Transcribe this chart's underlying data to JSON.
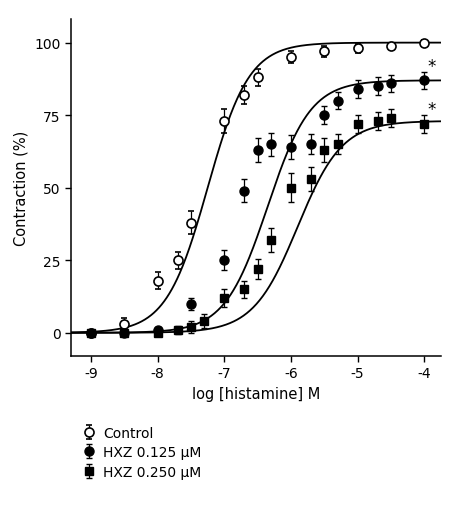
{
  "title": "",
  "xlabel": "log [histamine] M",
  "ylabel": "Contraction (%)",
  "xlim": [
    -9.3,
    -3.75
  ],
  "ylim": [
    -8,
    108
  ],
  "xticks": [
    -9,
    -8,
    -7,
    -6,
    -5,
    -4
  ],
  "xticklabels": [
    "-9",
    "-8",
    "-7",
    "-6",
    "-5",
    "-4"
  ],
  "yticks": [
    0,
    25,
    50,
    75,
    100
  ],
  "control_x": [
    -9.0,
    -8.5,
    -8.0,
    -7.7,
    -7.5,
    -7.0,
    -6.7,
    -6.5,
    -6.0,
    -5.5,
    -5.0,
    -4.5,
    -4.0
  ],
  "control_y": [
    0,
    3,
    18,
    25,
    38,
    73,
    82,
    88,
    95,
    97,
    98,
    99,
    100
  ],
  "control_yerr": [
    0.5,
    2,
    3,
    3,
    4,
    4,
    3,
    3,
    2,
    2,
    1.5,
    1,
    1
  ],
  "hxz125_x": [
    -9.0,
    -8.5,
    -8.0,
    -7.5,
    -7.0,
    -6.7,
    -6.5,
    -6.3,
    -6.0,
    -5.7,
    -5.5,
    -5.3,
    -5.0,
    -4.7,
    -4.5,
    -4.0
  ],
  "hxz125_y": [
    0,
    0,
    1,
    10,
    25,
    49,
    63,
    65,
    64,
    65,
    75,
    80,
    84,
    85,
    86,
    87
  ],
  "hxz125_yerr": [
    0.5,
    1,
    1,
    2,
    3.5,
    4,
    4,
    4,
    4,
    3.5,
    3,
    3,
    3,
    3,
    3,
    3
  ],
  "hxz250_x": [
    -9.0,
    -8.5,
    -8.0,
    -7.7,
    -7.5,
    -7.3,
    -7.0,
    -6.7,
    -6.5,
    -6.3,
    -6.0,
    -5.7,
    -5.5,
    -5.3,
    -5.0,
    -4.7,
    -4.5,
    -4.0
  ],
  "hxz250_y": [
    0,
    0,
    0,
    1,
    2,
    4,
    12,
    15,
    22,
    32,
    50,
    53,
    63,
    65,
    72,
    73,
    74,
    72
  ],
  "hxz250_yerr": [
    0.5,
    0.5,
    1,
    1.5,
    2,
    2.5,
    3,
    3,
    3.5,
    4,
    5,
    4,
    4,
    3.5,
    3,
    3,
    3,
    3
  ],
  "asterisk_x_125": -4.0,
  "asterisk_y_125": 92,
  "asterisk_x_250": -4.0,
  "asterisk_y_250": 77,
  "ctrl_ec50": -7.25,
  "ctrl_emax": 100,
  "ctrl_n": 1.4,
  "hxz125_ec50": -6.35,
  "hxz125_emax": 87,
  "hxz125_n": 1.35,
  "hxz250_ec50": -5.9,
  "hxz250_emax": 73,
  "hxz250_n": 1.3,
  "legend_labels": [
    "Control",
    "HXZ 0.125 μM",
    "HXZ 0.250 μM"
  ]
}
